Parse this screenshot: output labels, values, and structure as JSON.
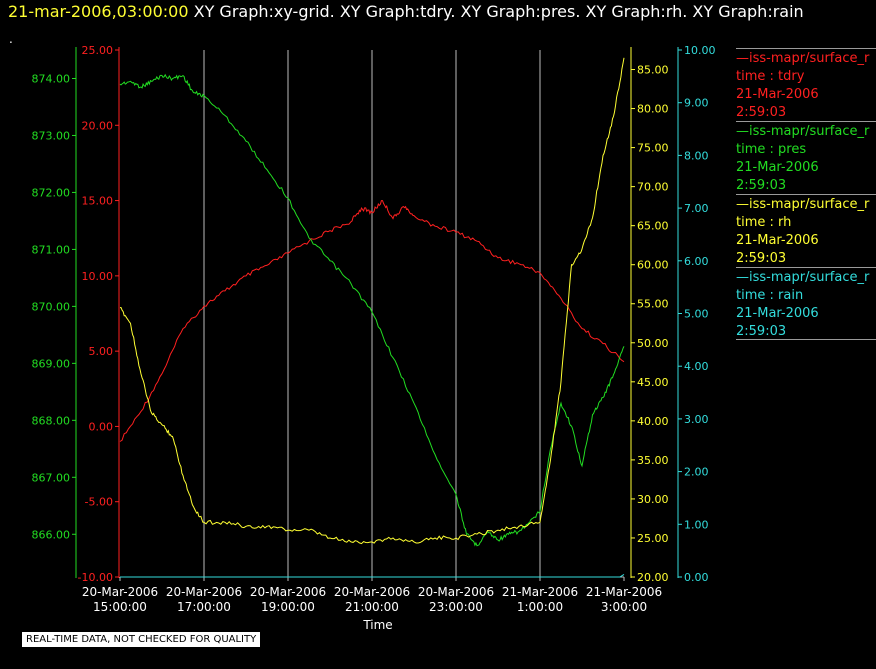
{
  "header": {
    "timestamp": "21-mar-2006,03:00:00",
    "titles": "XY Graph:xy-grid.  XY Graph:tdry.  XY Graph:pres.  XY Graph:rh.  XY Graph:rain",
    "dot": "."
  },
  "legend": [
    {
      "line1": "—iss-mapr/surface_r",
      "line2": "time : tdry",
      "line3": "21-Mar-2006",
      "line4": "2:59:03",
      "color": "#ff2020"
    },
    {
      "line1": "—iss-mapr/surface_r",
      "line2": "time : pres",
      "line3": "21-Mar-2006",
      "line4": "2:59:03",
      "color": "#22dd22"
    },
    {
      "line1": "—iss-mapr/surface_r",
      "line2": "time : rh",
      "line3": "21-Mar-2006",
      "line4": "2:59:03",
      "color": "#ffff33"
    },
    {
      "line1": "—iss-mapr/surface_r",
      "line2": "time : rain",
      "line3": "21-Mar-2006",
      "line4": "2:59:03",
      "color": "#33dddd"
    }
  ],
  "footer_note": "REAL-TIME DATA, NOT CHECKED FOR QUALITY",
  "chart_data": {
    "type": "line",
    "title": "XY Graph:xy-grid.  XY Graph:tdry.  XY Graph:pres.  XY Graph:rh.  XY Graph:rain",
    "xlabel": "Time",
    "grid": "vertical lines at each x tick",
    "x_ticks": [
      [
        "20-Mar-2006",
        "15:00:00"
      ],
      [
        "20-Mar-2006",
        "17:00:00"
      ],
      [
        "20-Mar-2006",
        "19:00:00"
      ],
      [
        "20-Mar-2006",
        "21:00:00"
      ],
      [
        "20-Mar-2006",
        "23:00:00"
      ],
      [
        "21-Mar-2006",
        "1:00:00"
      ],
      [
        "21-Mar-2006",
        "3:00:00"
      ]
    ],
    "x_hours": [
      0,
      2,
      4,
      6,
      8,
      10,
      12
    ],
    "xlim_hours": [
      0,
      12
    ],
    "axes": {
      "tdry": {
        "color": "#ff2020",
        "ylim": [
          -10,
          25
        ],
        "ticks": [
          "-10.00",
          "-5.00",
          "0.00",
          "5.00",
          "10.00",
          "15.00",
          "20.00",
          "25.00"
        ]
      },
      "pres": {
        "color": "#22dd22",
        "ylim": [
          865.25,
          874.5
        ],
        "ticks": [
          "866.00",
          "867.00",
          "868.00",
          "869.00",
          "870.00",
          "871.00",
          "872.00",
          "873.00",
          "874.00"
        ]
      },
      "rh": {
        "color": "#ffff33",
        "ylim": [
          20,
          87.5
        ],
        "ticks": [
          "20.00",
          "25.00",
          "30.00",
          "35.00",
          "40.00",
          "45.00",
          "50.00",
          "55.00",
          "60.00",
          "65.00",
          "70.00",
          "75.00",
          "80.00",
          "85.00"
        ]
      },
      "rain": {
        "color": "#33dddd",
        "ylim": [
          0,
          10
        ],
        "ticks": [
          "0.00",
          "1.00",
          "2.00",
          "3.00",
          "4.00",
          "5.00",
          "6.00",
          "7.00",
          "8.00",
          "9.00",
          "10.00"
        ]
      }
    },
    "series": [
      {
        "name": "time : tdry",
        "axis": "tdry",
        "color": "#ff2020",
        "x": [
          0,
          0.5,
          1.0,
          1.5,
          2.0,
          2.5,
          3.0,
          3.5,
          4.0,
          4.5,
          5.0,
          5.5,
          5.75,
          6.0,
          6.25,
          6.5,
          6.75,
          7.0,
          7.5,
          8.0,
          8.5,
          9.0,
          9.5,
          10.0,
          10.5,
          11.0,
          11.5,
          12.0
        ],
        "values": [
          -1.0,
          1.0,
          3.5,
          6.5,
          8.0,
          9.0,
          10.0,
          10.7,
          11.5,
          12.3,
          13.0,
          13.6,
          14.5,
          14.2,
          15.0,
          13.8,
          14.6,
          14.0,
          13.3,
          12.9,
          12.3,
          11.2,
          10.8,
          10.2,
          8.5,
          6.5,
          5.5,
          4.3
        ]
      },
      {
        "name": "time : pres",
        "axis": "pres",
        "color": "#22dd22",
        "x": [
          0,
          0.25,
          0.5,
          0.75,
          1.0,
          1.25,
          1.5,
          1.75,
          2.0,
          2.5,
          3.0,
          3.5,
          4.0,
          4.5,
          5.0,
          5.5,
          6.0,
          6.5,
          7.0,
          7.5,
          8.0,
          8.25,
          8.5,
          8.75,
          9.0,
          9.25,
          9.5,
          9.75,
          10.0,
          10.25,
          10.5,
          10.75,
          11.0,
          11.25,
          11.5,
          11.75,
          12.0
        ],
        "values": [
          873.9,
          873.95,
          873.85,
          873.95,
          874.05,
          874.0,
          874.05,
          873.75,
          873.7,
          873.35,
          872.9,
          872.4,
          871.9,
          871.2,
          870.8,
          870.4,
          869.9,
          869.1,
          868.3,
          867.4,
          866.7,
          866.0,
          865.8,
          866.05,
          865.9,
          866.0,
          866.05,
          866.2,
          866.4,
          867.5,
          868.3,
          867.9,
          867.2,
          868.1,
          868.4,
          868.8,
          869.3
        ]
      },
      {
        "name": "time : rh",
        "axis": "rh",
        "color": "#ffff33",
        "x": [
          0,
          0.25,
          0.5,
          0.75,
          1.0,
          1.25,
          1.5,
          1.75,
          2.0,
          2.5,
          3.0,
          3.5,
          4.0,
          4.5,
          5.0,
          5.5,
          6.0,
          6.5,
          7.0,
          7.5,
          8.0,
          8.5,
          9.0,
          9.5,
          10.0,
          10.25,
          10.5,
          10.75,
          11.0,
          11.25,
          11.5,
          11.75,
          12.0
        ],
        "values": [
          54.5,
          52.5,
          46.0,
          41.0,
          39.5,
          38.0,
          33.0,
          29.0,
          27.0,
          27.0,
          26.5,
          26.5,
          26.0,
          26.0,
          25.0,
          24.5,
          24.5,
          25.0,
          24.5,
          25.0,
          25.0,
          25.5,
          26.0,
          26.5,
          27.0,
          35.0,
          45.0,
          60.0,
          62.0,
          66.0,
          74.0,
          79.0,
          86.5
        ]
      },
      {
        "name": "time : rain",
        "axis": "rain",
        "color": "#33dddd",
        "x": [
          0,
          11.9,
          12.0
        ],
        "values": [
          0.0,
          0.0,
          0.05
        ]
      }
    ]
  }
}
